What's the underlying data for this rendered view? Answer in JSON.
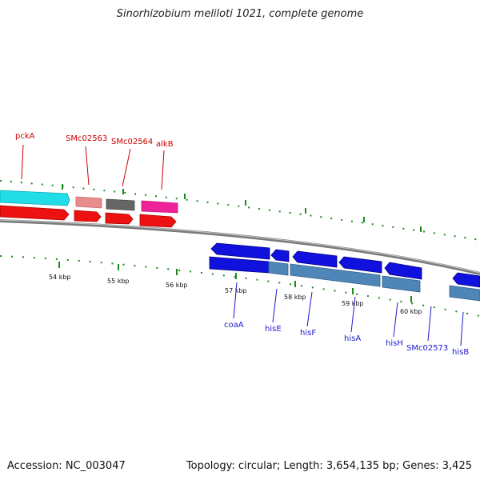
{
  "header": {
    "title": "Sinorhizobium meliloti 1021, complete genome"
  },
  "footer": {
    "accession": "Accession: NC_003047",
    "summary": "Topology: circular; Length: 3,654,135 bp; Genes: 3,425"
  },
  "colors": {
    "forward_label": "#cc0000",
    "reverse_label": "#1a1acc",
    "tick_mark": "#1a8a1a",
    "backbone": "#7a7a7a",
    "cds_forward": "#ee1111",
    "cds_reverse": "#1111dd",
    "cds_reverse_light": "#4f86b8",
    "pckA": "#22dde8",
    "SMc02563": "#e88c8c",
    "SMc02564": "#666666",
    "alkB": "#ee2299"
  },
  "scale_labels": [
    "54 kbp",
    "55 kbp",
    "56 kbp",
    "57 kbp",
    "58 kbp",
    "59 kbp",
    "60 kbp"
  ],
  "forward_genes": [
    "pckA",
    "SMc02563",
    "SMc02564",
    "alkB"
  ],
  "reverse_genes": [
    "coaA",
    "hisE",
    "hisF",
    "hisA",
    "hisH",
    "SMc02573",
    "hisB"
  ]
}
